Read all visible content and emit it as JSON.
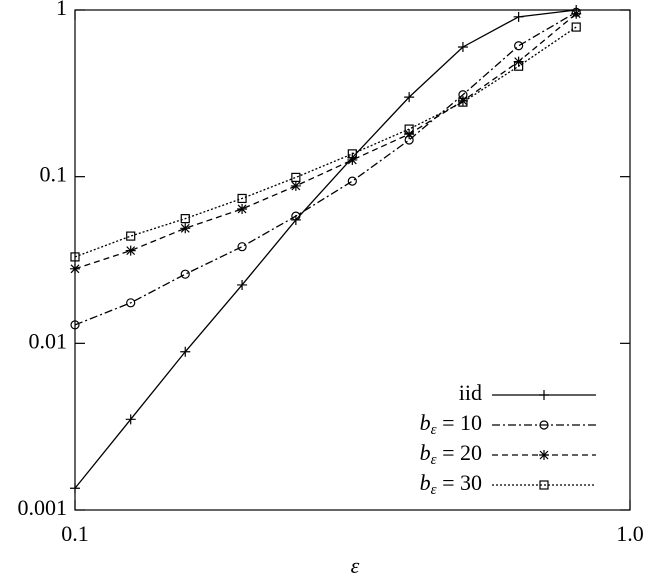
{
  "chart_data": {
    "type": "line",
    "x_label": "ε",
    "xlog": true,
    "ylog": true,
    "x": [
      0.1,
      0.126,
      0.158,
      0.2,
      0.25,
      0.316,
      0.4,
      0.5,
      0.63,
      0.8
    ],
    "xlim": [
      0.1,
      1
    ],
    "xticks": [
      0.1,
      {
        "value": 1,
        "label": "1.0"
      }
    ],
    "ylim": [
      0.001,
      1
    ],
    "yticks": [
      0.001,
      0.01,
      0.1,
      1
    ],
    "legend": "lower right",
    "series": [
      {
        "name": "iid",
        "color": "#000000",
        "marker": "plus",
        "dash": "solid",
        "values": [
          0.00135,
          0.0035,
          0.0089,
          0.0224,
          0.055,
          0.13,
          0.3,
          0.6,
          0.91,
          1.0
        ]
      },
      {
        "name": "bε = 10",
        "color": "#000000",
        "marker": "circle",
        "dash": "dashdot",
        "values": [
          0.0129,
          0.0175,
          0.026,
          0.038,
          0.058,
          0.094,
          0.166,
          0.31,
          0.61,
          0.97
        ]
      },
      {
        "name": "bε = 20",
        "color": "#000000",
        "marker": "star",
        "dash": "dashed",
        "values": [
          0.028,
          0.036,
          0.049,
          0.064,
          0.088,
          0.126,
          0.18,
          0.285,
          0.49,
          0.95
        ]
      },
      {
        "name": "bε = 30",
        "color": "#000000",
        "marker": "square",
        "dash": "dotted",
        "values": [
          0.033,
          0.044,
          0.056,
          0.074,
          0.099,
          0.137,
          0.193,
          0.28,
          0.46,
          0.79
        ]
      }
    ]
  }
}
